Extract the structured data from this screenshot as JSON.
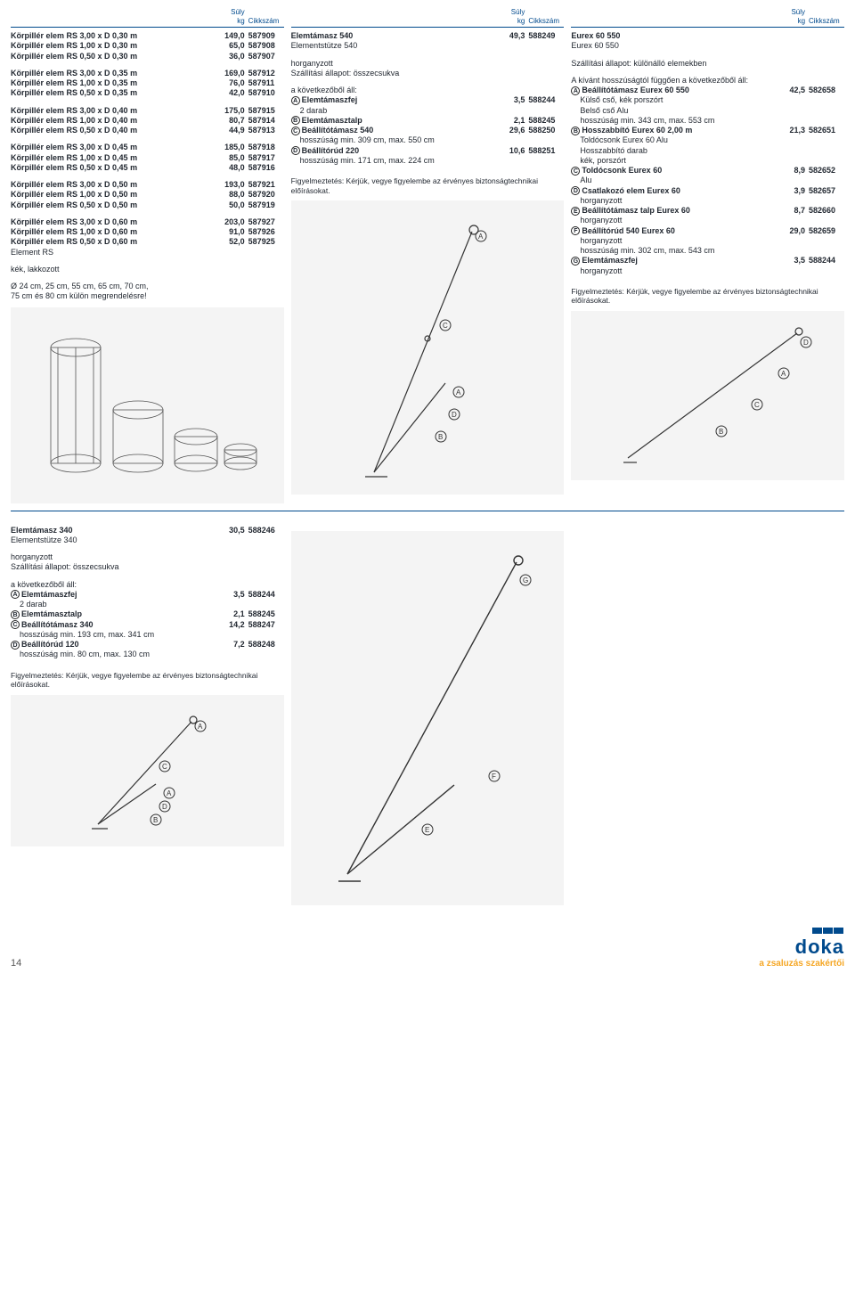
{
  "headers": {
    "suly": "Súly",
    "kg": "kg",
    "cikkszam": "Cikkszám"
  },
  "col1": {
    "rows": [
      {
        "n": "Körpillér elem RS 3,00 x D 0,30 m",
        "v1": "149,0",
        "v2": "587909",
        "b": true
      },
      {
        "n": "Körpillér elem RS 1,00 x D 0,30 m",
        "v1": "65,0",
        "v2": "587908",
        "b": true
      },
      {
        "n": "Körpillér elem RS 0,50 x D 0,30 m",
        "v1": "36,0",
        "v2": "587907",
        "b": true
      },
      {
        "gap": true
      },
      {
        "n": "Körpillér elem RS 3,00 x D 0,35 m",
        "v1": "169,0",
        "v2": "587912",
        "b": true
      },
      {
        "n": "Körpillér elem RS 1,00 x D 0,35 m",
        "v1": "76,0",
        "v2": "587911",
        "b": true
      },
      {
        "n": "Körpillér elem RS 0,50 x D 0,35 m",
        "v1": "42,0",
        "v2": "587910",
        "b": true
      },
      {
        "gap": true
      },
      {
        "n": "Körpillér elem RS 3,00 x D 0,40 m",
        "v1": "175,0",
        "v2": "587915",
        "b": true
      },
      {
        "n": "Körpillér elem RS 1,00 x D 0,40 m",
        "v1": "80,7",
        "v2": "587914",
        "b": true
      },
      {
        "n": "Körpillér elem RS 0,50 x D 0,40 m",
        "v1": "44,9",
        "v2": "587913",
        "b": true
      },
      {
        "gap": true
      },
      {
        "n": "Körpillér elem RS 3,00 x D 0,45 m",
        "v1": "185,0",
        "v2": "587918",
        "b": true
      },
      {
        "n": "Körpillér elem RS 1,00 x D 0,45 m",
        "v1": "85,0",
        "v2": "587917",
        "b": true
      },
      {
        "n": "Körpillér elem RS 0,50 x D 0,45 m",
        "v1": "48,0",
        "v2": "587916",
        "b": true
      },
      {
        "gap": true
      },
      {
        "n": "Körpillér elem RS 3,00 x D 0,50 m",
        "v1": "193,0",
        "v2": "587921",
        "b": true
      },
      {
        "n": "Körpillér elem RS 1,00 x D 0,50 m",
        "v1": "88,0",
        "v2": "587920",
        "b": true
      },
      {
        "n": "Körpillér elem RS 0,50 x D 0,50 m",
        "v1": "50,0",
        "v2": "587919",
        "b": true
      },
      {
        "gap": true
      },
      {
        "n": "Körpillér elem RS 3,00 x D 0,60 m",
        "v1": "203,0",
        "v2": "587927",
        "b": true
      },
      {
        "n": "Körpillér elem RS 1,00 x D 0,60 m",
        "v1": "91,0",
        "v2": "587926",
        "b": true
      },
      {
        "n": "Körpillér elem RS 0,50 x D 0,60 m",
        "v1": "52,0",
        "v2": "587925",
        "b": true
      },
      {
        "n": "Element RS"
      },
      {
        "gap": true
      },
      {
        "n": "kék, lakkozott"
      },
      {
        "gap": true
      },
      {
        "n": "Ø 24 cm, 25 cm, 55 cm, 65 cm, 70 cm,"
      },
      {
        "n": "75 cm és 80 cm külön megrendelésre!"
      }
    ]
  },
  "col2": {
    "title": {
      "n": "Elemtámasz 540",
      "v1": "49,3",
      "v2": "588249",
      "b": true
    },
    "sub": "Elementstütze 540",
    "lines": [
      "horganyzott",
      "Szállítási állapot: összecsukva",
      "",
      "a következőből áll:"
    ],
    "items": [
      {
        "s": "A",
        "n": "Elemtámaszfej",
        "v1": "3,5",
        "v2": "588244",
        "b": true,
        "sub": "2 darab"
      },
      {
        "s": "B",
        "n": "Elemtámasztalp",
        "v1": "2,1",
        "v2": "588245",
        "b": true
      },
      {
        "s": "C",
        "n": "Beállítótámasz 540",
        "v1": "29,6",
        "v2": "588250",
        "b": true,
        "sub": "hosszúság min. 309 cm, max. 550 cm"
      },
      {
        "s": "D",
        "n": "Beállítórúd 220",
        "v1": "10,6",
        "v2": "588251",
        "b": true,
        "sub": "hosszúság min. 171 cm, max. 224 cm"
      }
    ],
    "warn": "Figyelmeztetés: Kérjük, vegye figyelembe az érvényes biztonságtechnikai előírásokat."
  },
  "col3": {
    "title": {
      "n": "Eurex 60 550",
      "b": true
    },
    "sub": "Eurex 60 550",
    "lines": [
      "Szállítási állapot: különálló elemekben",
      "",
      "A kívánt hosszúságtól függően a következőből áll:"
    ],
    "items": [
      {
        "s": "A",
        "n": "Beállítótámasz Eurex 60 550",
        "v1": "42,5",
        "v2": "582658",
        "b": true,
        "sub": "Külső cső, kék porszórt",
        "sub2": "Belső cső Alu",
        "sub3": "hosszúság min. 343 cm, max. 553 cm"
      },
      {
        "s": "B",
        "n": "Hosszabbító Eurex 60 2,00 m",
        "v1": "21,3",
        "v2": "582651",
        "b": true,
        "sub": "Toldócsonk Eurex 60 Alu",
        "sub2": "Hosszabbító darab",
        "sub3": "kék, porszórt"
      },
      {
        "s": "C",
        "n": "Toldócsonk Eurex 60",
        "v1": "8,9",
        "v2": "582652",
        "b": true,
        "sub": "Alu"
      },
      {
        "s": "D",
        "n": "Csatlakozó elem Eurex 60",
        "v1": "3,9",
        "v2": "582657",
        "b": true,
        "sub": "horganyzott"
      },
      {
        "s": "E",
        "n": "Beállítótámasz talp Eurex 60",
        "v1": "8,7",
        "v2": "582660",
        "b": true,
        "sub": "horganyzott"
      },
      {
        "s": "F",
        "n": "Beállítórúd 540 Eurex 60",
        "v1": "29,0",
        "v2": "582659",
        "b": true,
        "sub": "horganyzott",
        "sub2": "hosszúság min. 302 cm, max. 543 cm"
      },
      {
        "s": "G",
        "n": "Elemtámaszfej",
        "v1": "3,5",
        "v2": "588244",
        "b": true,
        "sub": "horganyzott"
      }
    ],
    "warn": "Figyelmeztetés: Kérjük, vegye figyelembe az érvényes biztonságtechnikai előírásokat."
  },
  "bottom": {
    "title": {
      "n": "Elemtámasz 340",
      "v1": "30,5",
      "v2": "588246",
      "b": true
    },
    "sub": "Elementstütze 340",
    "lines": [
      "horganyzott",
      "Szállítási állapot: összecsukva",
      "",
      "a következőből áll:"
    ],
    "items": [
      {
        "s": "A",
        "n": "Elemtámaszfej",
        "v1": "3,5",
        "v2": "588244",
        "b": true,
        "sub": "2 darab"
      },
      {
        "s": "B",
        "n": "Elemtámasztalp",
        "v1": "2,1",
        "v2": "588245",
        "b": true
      },
      {
        "s": "C",
        "n": "Beállítótámasz 340",
        "v1": "14,2",
        "v2": "588247",
        "b": true,
        "sub": "hosszúság min. 193 cm, max. 341 cm"
      },
      {
        "s": "D",
        "n": "Beállítórúd 120",
        "v1": "7,2",
        "v2": "588248",
        "b": true,
        "sub": "hosszúság min. 80 cm, max. 130 cm"
      }
    ],
    "warn": "Figyelmeztetés: Kérjük, vegye figyelembe az érvényes biztonságtechnikai előírásokat."
  },
  "footer": {
    "page": "14",
    "brand": "doka",
    "tag": "a zsaluzás szakértői"
  }
}
